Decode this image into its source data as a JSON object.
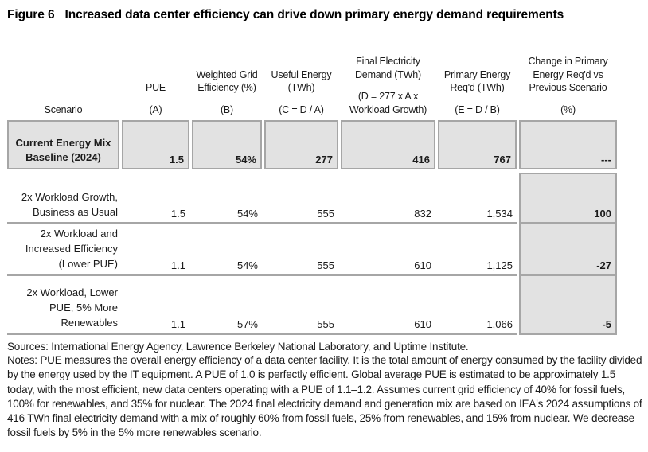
{
  "title": {
    "label": "Figure 6",
    "text": "Increased data center efficiency can drive down primary energy demand requirements"
  },
  "table": {
    "columns": [
      {
        "main": "",
        "sub": "Scenario"
      },
      {
        "main": "PUE",
        "sub": "(A)"
      },
      {
        "main": "Weighted Grid\nEfficiency (%)",
        "sub": "(B)"
      },
      {
        "main": "Useful Energy\n(TWh)",
        "sub": "(C = D / A)"
      },
      {
        "main": "Final Electricity\nDemand (TWh)",
        "sub": "(D = 277 x A x\nWorkload Growth)"
      },
      {
        "main": "Primary Energy\nReq'd (TWh)",
        "sub": "(E = D / B)"
      },
      {
        "main": "Change in Primary\nEnergy Req'd vs\nPrevious Scenario",
        "sub": "(%)"
      }
    ],
    "rows": [
      {
        "scenario": "Current Energy Mix\nBaseline (2024)",
        "pue": "1.5",
        "grid_efficiency": "54%",
        "useful_energy": "277",
        "final_demand": "416",
        "primary_energy": "767",
        "change": "---"
      },
      {
        "scenario": "2x Workload Growth,\nBusiness as Usual",
        "pue": "1.5",
        "grid_efficiency": "54%",
        "useful_energy": "555",
        "final_demand": "832",
        "primary_energy": "1,534",
        "change": "100"
      },
      {
        "scenario": "2x Workload and\nIncreased Efficiency\n(Lower PUE)",
        "pue": "1.1",
        "grid_efficiency": "54%",
        "useful_energy": "555",
        "final_demand": "610",
        "primary_energy": "1,125",
        "change": "-27"
      },
      {
        "scenario": "2x Workload, Lower\nPUE, 5% More\nRenewables",
        "pue": "1.1",
        "grid_efficiency": "57%",
        "useful_energy": "555",
        "final_demand": "610",
        "primary_energy": "1,066",
        "change": "-5"
      }
    ]
  },
  "chart_data": {
    "type": "table",
    "title": "Figure 6 Increased data center efficiency can drive down primary energy demand requirements",
    "columns": [
      "Scenario",
      "PUE (A)",
      "Weighted Grid Efficiency (%) (B)",
      "Useful Energy (TWh) (C = D / A)",
      "Final Electricity Demand (TWh) (D = 277 x A x Workload Growth)",
      "Primary Energy Req'd (TWh) (E = D / B)",
      "Change in Primary Energy Req'd vs Previous Scenario (%)"
    ],
    "rows": [
      [
        "Current Energy Mix Baseline (2024)",
        1.5,
        "54%",
        277,
        416,
        767,
        "---"
      ],
      [
        "2x Workload Growth, Business as Usual",
        1.5,
        "54%",
        555,
        832,
        1534,
        100
      ],
      [
        "2x Workload and Increased Efficiency (Lower PUE)",
        1.1,
        "54%",
        555,
        610,
        1125,
        -27
      ],
      [
        "2x Workload, Lower PUE, 5% More Renewables",
        1.1,
        "57%",
        555,
        610,
        1066,
        -5
      ]
    ]
  },
  "sources": "Sources:  International Energy Agency, Lawrence Berkeley National Laboratory, and Uptime Institute.",
  "notes": "Notes: PUE measures the overall energy efficiency of a data center facility. It is the total amount of energy consumed by the facility divided by the energy used by the IT equipment. A PUE of 1.0 is perfectly efficient. Global average PUE is estimated to be approximately 1.5 today, with the most efficient, new data centers operating with a PUE of 1.1–1.2. Assumes current grid efficiency of 40% for fossil fuels, 100% for renewables, and 35% for nuclear. The 2024 final electricity demand and generation mix are based on IEA's 2024 assumptions of 416 TWh final electricity demand with a mix of roughly 60% from fossil fuels, 25% from renewables, and 15% from nuclear. We decrease fossil fuels by 5% in the 5% more renewables scenario.",
  "colors": {
    "cell_fill": "#e2e2e2",
    "border_gray": "#a6a6a6",
    "text": "#1b1b1b"
  }
}
